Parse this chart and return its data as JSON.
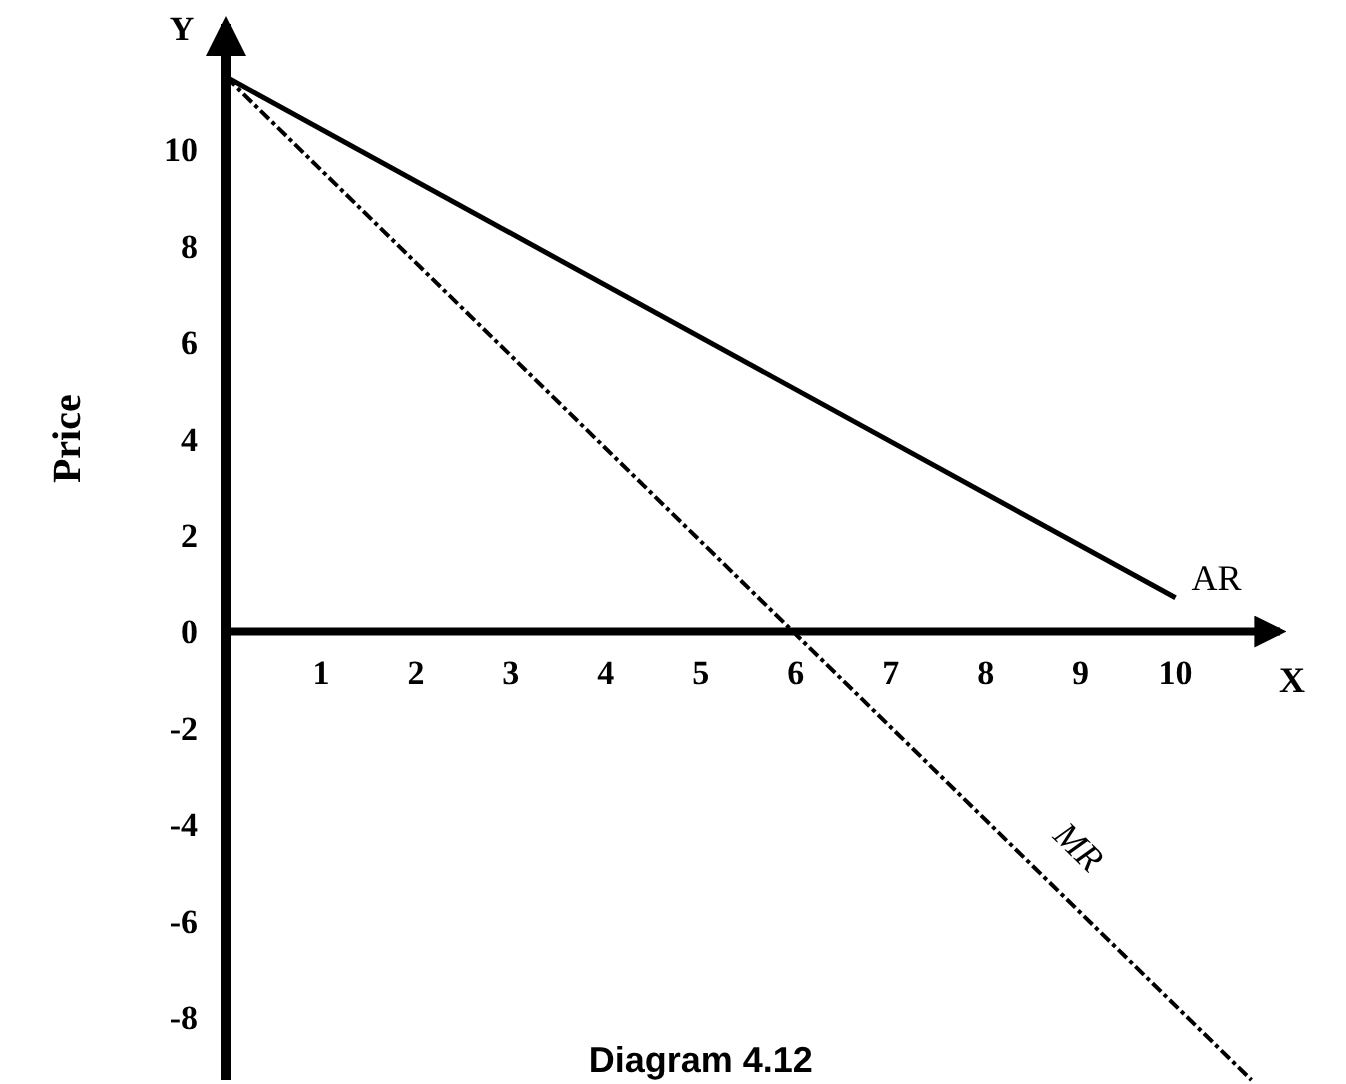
{
  "chart_data": {
    "type": "line",
    "ylabel": "Price",
    "xlabel": "X",
    "annotations": [
      "Y",
      "Diagram 4.12"
    ],
    "xlim": [
      0,
      11.1
    ],
    "ylim": [
      -9.3,
      12.6
    ],
    "xticks": [
      1,
      2,
      3,
      4,
      5,
      6,
      7,
      8,
      9,
      10
    ],
    "yticks": [
      -8,
      -6,
      -4,
      -2,
      0,
      2,
      4,
      6,
      8,
      10
    ],
    "series": [
      {
        "name": "AR",
        "color": "#000000",
        "x": [
          0,
          10
        ],
        "values": [
          11.5,
          0.7
        ],
        "line_style": "solid"
      },
      {
        "name": "MR",
        "color": "#000000",
        "x": [
          0,
          10.8
        ],
        "values": [
          11.5,
          -9.3
        ],
        "line_style": "dashed"
      }
    ],
    "grid": false,
    "marker": "none"
  }
}
